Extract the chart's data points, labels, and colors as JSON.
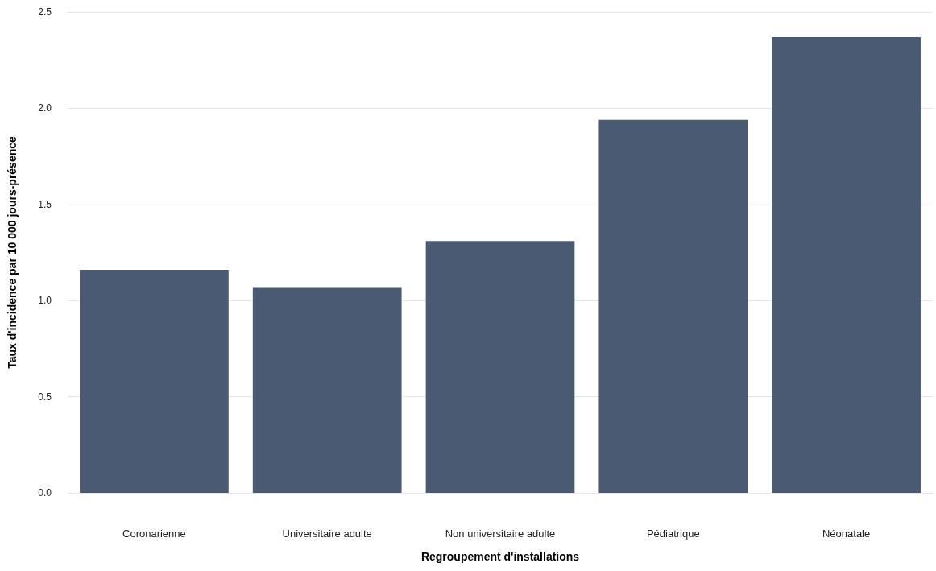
{
  "chart_data": {
    "type": "bar",
    "xlabel": "Regroupement d'installations",
    "ylabel": "Taux d'incidence par 10 000 jours-présence",
    "categories": [
      "Coronarienne",
      "Universitaire adulte",
      "Non universitaire adulte",
      "Pédiatrique",
      "Néonatale"
    ],
    "values": [
      1.16,
      1.07,
      1.31,
      1.94,
      2.37
    ],
    "color": "#4a5a72",
    "ylim": [
      0,
      2.5
    ],
    "yticks": [
      {
        "value": 0,
        "label": "0.0"
      },
      0.5,
      {
        "value": 1,
        "label": "1.0"
      },
      1.5,
      {
        "value": 2,
        "label": "2.0"
      },
      2.5
    ],
    "grid": "y"
  }
}
